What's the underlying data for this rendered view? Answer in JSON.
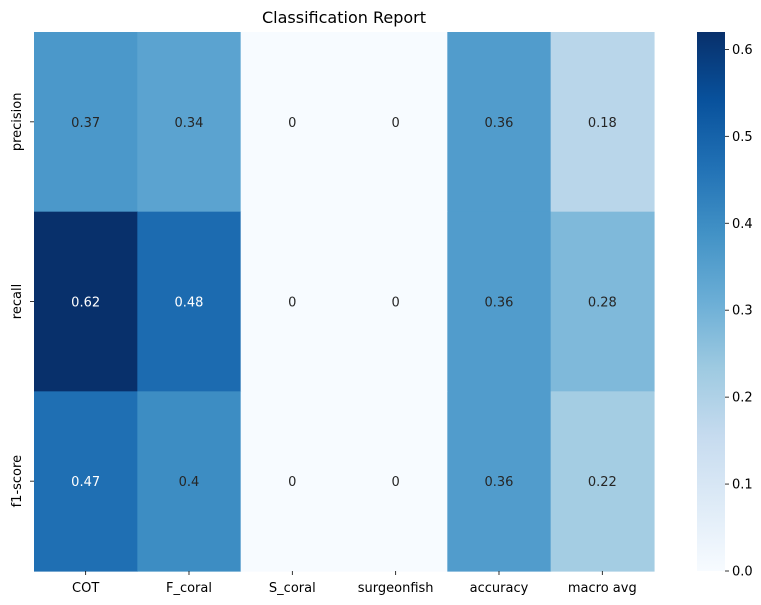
{
  "chart_data": {
    "type": "heatmap",
    "title": "Classification Report",
    "xlabel": "",
    "ylabel": "",
    "x_categories": [
      "COT",
      "F_coral",
      "S_coral",
      "surgeonfish",
      "accuracy",
      "macro avg"
    ],
    "y_categories": [
      "precision",
      "recall",
      "f1-score"
    ],
    "values": [
      [
        0.37,
        0.34,
        0,
        0,
        0.36,
        0.18
      ],
      [
        0.62,
        0.48,
        0,
        0,
        0.36,
        0.28
      ],
      [
        0.47,
        0.4,
        0,
        0,
        0.36,
        0.22
      ]
    ],
    "annotations": [
      [
        "0.37",
        "0.34",
        "0",
        "0",
        "0.36",
        "0.18"
      ],
      [
        "0.62",
        "0.48",
        "0",
        "0",
        "0.36",
        "0.28"
      ],
      [
        "0.47",
        "0.4",
        "0",
        "0",
        "0.36",
        "0.22"
      ]
    ],
    "colormap": "Blues",
    "colorbar": {
      "vmin": 0,
      "vmax": 0.62,
      "ticks": [
        0.0,
        0.1,
        0.2,
        0.3,
        0.4,
        0.5,
        0.6
      ],
      "tick_labels": [
        "0.0",
        "0.1",
        "0.2",
        "0.3",
        "0.4",
        "0.5",
        "0.6"
      ]
    },
    "grid": false,
    "legend": "none"
  }
}
